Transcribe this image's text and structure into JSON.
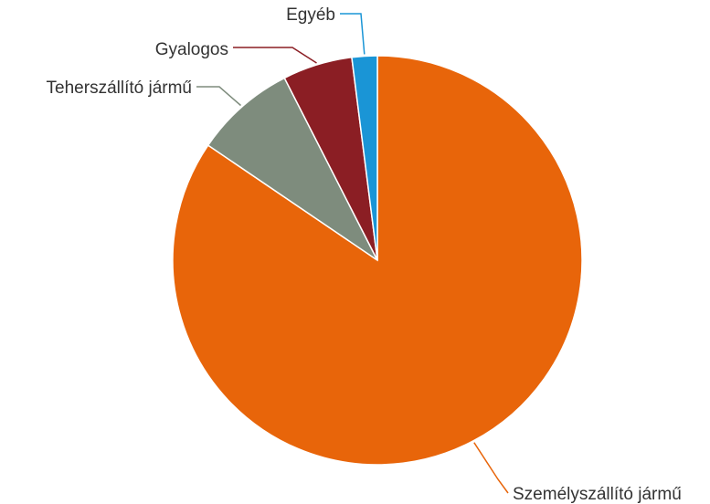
{
  "chart_data": {
    "type": "pie",
    "title": "",
    "start_angle_deg": 0,
    "direction": "clockwise",
    "slices": [
      {
        "label": "Személyszállító jármű",
        "value": 84.5,
        "color": "#E8650A"
      },
      {
        "label": "Teherszállító jármű",
        "value": 8.0,
        "color": "#7E8C7D"
      },
      {
        "label": "Gyalogos",
        "value": 5.5,
        "color": "#8B1E24"
      },
      {
        "label": "Egyéb",
        "value": 2.0,
        "color": "#1A95D6"
      }
    ]
  }
}
